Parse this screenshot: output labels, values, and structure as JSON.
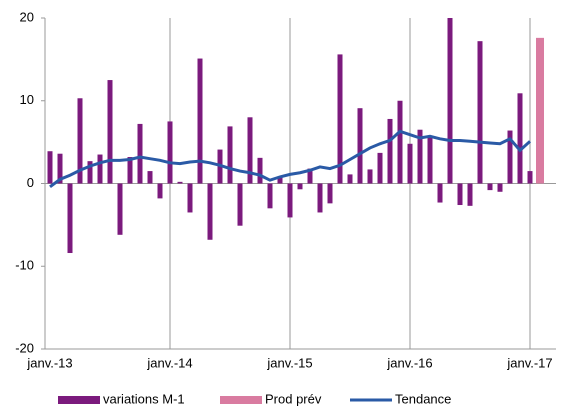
{
  "chart_data": {
    "type": "bar-line",
    "categories": [
      "janv.-13",
      null,
      null,
      null,
      null,
      null,
      null,
      null,
      null,
      null,
      null,
      null,
      "janv.-14",
      null,
      null,
      null,
      null,
      null,
      null,
      null,
      null,
      null,
      null,
      null,
      "janv.-15",
      null,
      null,
      null,
      null,
      null,
      null,
      null,
      null,
      null,
      null,
      null,
      "janv.-16",
      null,
      null,
      null,
      null,
      null,
      null,
      null,
      null,
      null,
      null,
      null,
      "janv.-17",
      null
    ],
    "series": [
      {
        "name": "variations M-1",
        "kind": "bar",
        "color": "#7b1a7d",
        "values": [
          3.9,
          3.6,
          -8.4,
          10.3,
          2.7,
          3.5,
          12.5,
          -6.2,
          3.2,
          7.2,
          1.5,
          -1.8,
          7.5,
          0.2,
          -3.5,
          15.1,
          -6.8,
          4.1,
          6.9,
          -5.1,
          8.0,
          3.1,
          -3.0,
          0.8,
          -4.1,
          -0.7,
          1.8,
          -3.5,
          -2.4,
          15.6,
          1.1,
          9.1,
          1.7,
          3.7,
          7.8,
          10.0,
          4.8,
          6.5,
          5.8,
          -2.3,
          20.0,
          -2.6,
          -2.7,
          17.2,
          -0.8,
          -1.0,
          6.4,
          10.9,
          1.5,
          null
        ]
      },
      {
        "name": "Prod prév",
        "kind": "bar",
        "color": "#d97ba0",
        "values": [
          null,
          null,
          null,
          null,
          null,
          null,
          null,
          null,
          null,
          null,
          null,
          null,
          null,
          null,
          null,
          null,
          null,
          null,
          null,
          null,
          null,
          null,
          null,
          null,
          null,
          null,
          null,
          null,
          null,
          null,
          null,
          null,
          null,
          null,
          null,
          null,
          null,
          null,
          null,
          null,
          null,
          null,
          null,
          null,
          null,
          null,
          null,
          null,
          null,
          17.6
        ]
      },
      {
        "name": "Tendance",
        "kind": "line",
        "color": "#2a5aa6",
        "values": [
          -0.4,
          0.5,
          1.0,
          1.6,
          2.1,
          2.5,
          2.8,
          2.8,
          2.9,
          3.2,
          3.0,
          2.8,
          2.5,
          2.4,
          2.6,
          2.7,
          2.5,
          2.2,
          1.8,
          1.5,
          1.3,
          1.0,
          0.4,
          0.8,
          1.1,
          1.3,
          1.6,
          2.0,
          1.8,
          2.2,
          2.9,
          3.6,
          4.3,
          4.8,
          5.2,
          6.3,
          5.9,
          5.5,
          5.7,
          5.4,
          5.2,
          5.2,
          5.1,
          5.0,
          4.9,
          4.8,
          5.4,
          4.0,
          5.1,
          null
        ]
      }
    ],
    "ylim": [
      -20,
      20
    ],
    "yticks": [
      -20,
      -10,
      0,
      10,
      20
    ],
    "grid": true,
    "legend": "bottom"
  }
}
